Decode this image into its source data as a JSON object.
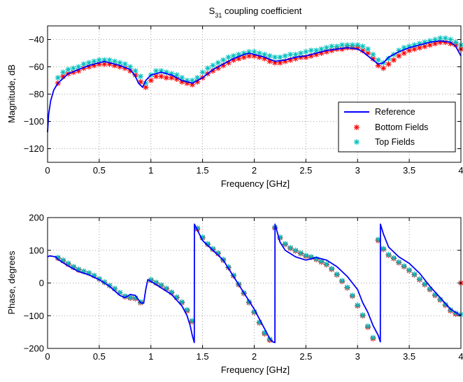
{
  "figure_title": "S",
  "figure_title_sub": "31",
  "figure_title_rest": " coupling coefficient",
  "colors": {
    "reference": "#0000ff",
    "bottom": "#ff0000",
    "top": "#00bfbf"
  },
  "legend": {
    "position": "bottom-right of top plot",
    "items": [
      "Reference",
      "Bottom Fields",
      "Top Fields"
    ]
  },
  "chart_data": [
    {
      "type": "line",
      "xlabel": "Frequency [GHz]",
      "ylabel": "Magnitude, dB",
      "xlim": [
        0,
        4
      ],
      "ylim": [
        -130,
        -30
      ],
      "xticks": [
        "0",
        "0.5",
        "1",
        "1.5",
        "2",
        "2.5",
        "3",
        "3.5",
        "4"
      ],
      "xtick_values": [
        0,
        0.5,
        1,
        1.5,
        2,
        2.5,
        3,
        3.5,
        4
      ],
      "yticks": [
        "−40",
        "−60",
        "−80",
        "−100",
        "−120"
      ],
      "ytick_values": [
        -40,
        -60,
        -80,
        -100,
        -120
      ],
      "grid": true,
      "series": [
        {
          "name": "Reference",
          "style": "line",
          "x": [
            0,
            0.01,
            0.03,
            0.06,
            0.1,
            0.2,
            0.3,
            0.4,
            0.5,
            0.55,
            0.6,
            0.7,
            0.8,
            0.85,
            0.88,
            0.92,
            0.95,
            1.0,
            1.1,
            1.2,
            1.3,
            1.4,
            1.5,
            1.6,
            1.7,
            1.8,
            1.9,
            1.95,
            2.0,
            2.1,
            2.2,
            2.3,
            2.4,
            2.5,
            2.6,
            2.7,
            2.8,
            2.9,
            3.0,
            3.05,
            3.1,
            3.15,
            3.2,
            3.25,
            3.3,
            3.4,
            3.5,
            3.6,
            3.7,
            3.8,
            3.9,
            3.95,
            4.0
          ],
          "y": [
            -108,
            -95,
            -85,
            -77,
            -72,
            -65,
            -62,
            -59,
            -57,
            -56,
            -57,
            -59,
            -62,
            -67,
            -72,
            -75,
            -70,
            -66,
            -64,
            -66,
            -70,
            -72,
            -68,
            -62,
            -58,
            -54,
            -51,
            -50,
            -51,
            -53,
            -56,
            -55,
            -53,
            -52,
            -50,
            -48,
            -47,
            -46,
            -47,
            -49,
            -52,
            -55,
            -58,
            -57,
            -53,
            -49,
            -46,
            -44,
            -42,
            -41,
            -42,
            -45,
            -52
          ]
        },
        {
          "name": "Bottom Fields",
          "style": "marker",
          "x": [
            0.1,
            0.15,
            0.2,
            0.25,
            0.3,
            0.35,
            0.4,
            0.45,
            0.5,
            0.55,
            0.6,
            0.65,
            0.7,
            0.75,
            0.8,
            0.85,
            0.9,
            0.95,
            1.0,
            1.05,
            1.1,
            1.15,
            1.2,
            1.25,
            1.3,
            1.35,
            1.4,
            1.45,
            1.5,
            1.55,
            1.6,
            1.65,
            1.7,
            1.75,
            1.8,
            1.85,
            1.9,
            1.95,
            2.0,
            2.05,
            2.1,
            2.15,
            2.2,
            2.25,
            2.3,
            2.35,
            2.4,
            2.45,
            2.5,
            2.55,
            2.6,
            2.65,
            2.7,
            2.75,
            2.8,
            2.85,
            2.9,
            2.95,
            3.0,
            3.05,
            3.1,
            3.15,
            3.2,
            3.25,
            3.3,
            3.35,
            3.4,
            3.45,
            3.5,
            3.55,
            3.6,
            3.65,
            3.7,
            3.75,
            3.8,
            3.85,
            3.9,
            3.95,
            4.0
          ],
          "y": [
            -72,
            -67,
            -65,
            -64,
            -63,
            -61,
            -60,
            -59,
            -58,
            -58,
            -58,
            -59,
            -60,
            -61,
            -63,
            -66,
            -71,
            -75,
            -70,
            -67,
            -67,
            -68,
            -68,
            -69,
            -71,
            -72,
            -73,
            -71,
            -68,
            -65,
            -63,
            -61,
            -59,
            -57,
            -55,
            -54,
            -53,
            -52,
            -52,
            -53,
            -54,
            -56,
            -57,
            -57,
            -56,
            -55,
            -54,
            -53,
            -53,
            -52,
            -51,
            -50,
            -49,
            -48,
            -47,
            -47,
            -46,
            -46,
            -46,
            -48,
            -50,
            -54,
            -59,
            -61,
            -58,
            -55,
            -52,
            -50,
            -48,
            -47,
            -46,
            -45,
            -44,
            -43,
            -42,
            -42,
            -43,
            -44,
            -47
          ]
        },
        {
          "name": "Top Fields",
          "style": "marker",
          "x": [
            0.1,
            0.15,
            0.2,
            0.25,
            0.3,
            0.35,
            0.4,
            0.45,
            0.5,
            0.55,
            0.6,
            0.65,
            0.7,
            0.75,
            0.8,
            0.85,
            0.9,
            0.95,
            1.0,
            1.05,
            1.1,
            1.15,
            1.2,
            1.25,
            1.3,
            1.35,
            1.4,
            1.45,
            1.5,
            1.55,
            1.6,
            1.65,
            1.7,
            1.75,
            1.8,
            1.85,
            1.9,
            1.95,
            2.0,
            2.05,
            2.1,
            2.15,
            2.2,
            2.25,
            2.3,
            2.35,
            2.4,
            2.45,
            2.5,
            2.55,
            2.6,
            2.65,
            2.7,
            2.75,
            2.8,
            2.85,
            2.9,
            2.95,
            3.0,
            3.05,
            3.1,
            3.15,
            3.2,
            3.25,
            3.3,
            3.35,
            3.4,
            3.45,
            3.5,
            3.55,
            3.6,
            3.65,
            3.7,
            3.75,
            3.8,
            3.85,
            3.9,
            3.95,
            4.0
          ],
          "y": [
            -68,
            -64,
            -62,
            -61,
            -60,
            -58,
            -57,
            -56,
            -55,
            -55,
            -55,
            -56,
            -57,
            -58,
            -60,
            -63,
            -67,
            -72,
            -66,
            -63,
            -63,
            -64,
            -65,
            -66,
            -68,
            -70,
            -70,
            -68,
            -64,
            -61,
            -59,
            -57,
            -55,
            -53,
            -52,
            -51,
            -50,
            -49,
            -49,
            -50,
            -51,
            -52,
            -53,
            -53,
            -52,
            -51,
            -51,
            -50,
            -49,
            -48,
            -48,
            -47,
            -46,
            -45,
            -45,
            -44,
            -44,
            -44,
            -44,
            -45,
            -47,
            -51,
            -55,
            -57,
            -54,
            -51,
            -48,
            -46,
            -45,
            -44,
            -43,
            -42,
            -41,
            -40,
            -39,
            -39,
            -40,
            -42,
            -44
          ]
        }
      ]
    },
    {
      "type": "line",
      "xlabel": "Frequency [GHz]",
      "ylabel": "Phase, degrees",
      "xlim": [
        0,
        4
      ],
      "ylim": [
        -200,
        200
      ],
      "xticks": [
        "0",
        "0.5",
        "1",
        "1.5",
        "2",
        "2.5",
        "3",
        "3.5",
        "4"
      ],
      "xtick_values": [
        0,
        0.5,
        1,
        1.5,
        2,
        2.5,
        3,
        3.5,
        4
      ],
      "yticks": [
        "200",
        "100",
        "0",
        "−100",
        "−200"
      ],
      "ytick_values": [
        200,
        100,
        0,
        -100,
        -200
      ],
      "grid": true,
      "series": [
        {
          "name": "Reference",
          "style": "line",
          "x": [
            0,
            0.02,
            0.08,
            0.1,
            0.2,
            0.3,
            0.4,
            0.5,
            0.6,
            0.7,
            0.75,
            0.8,
            0.85,
            0.9,
            0.93,
            0.95,
            0.97,
            1.0,
            1.05,
            1.1,
            1.2,
            1.3,
            1.35,
            1.38,
            1.4,
            1.42,
            1.421,
            1.5,
            1.6,
            1.7,
            1.8,
            1.9,
            2.0,
            2.1,
            2.15,
            2.18,
            2.2,
            2.201,
            2.25,
            2.3,
            2.4,
            2.5,
            2.6,
            2.7,
            2.8,
            2.9,
            3.0,
            3.05,
            3.1,
            3.15,
            3.2,
            3.22,
            3.221,
            3.25,
            3.3,
            3.4,
            3.5,
            3.6,
            3.7,
            3.8,
            3.9,
            4.0
          ],
          "y": [
            80,
            83,
            80,
            72,
            52,
            35,
            25,
            10,
            -10,
            -38,
            -45,
            -35,
            -38,
            -60,
            -62,
            -20,
            10,
            5,
            -5,
            -15,
            -35,
            -70,
            -100,
            -130,
            -160,
            -182,
            180,
            130,
            100,
            70,
            20,
            -30,
            -80,
            -140,
            -170,
            -180,
            -182,
            180,
            125,
            100,
            80,
            70,
            78,
            70,
            50,
            20,
            -20,
            -60,
            -90,
            -130,
            -160,
            -180,
            180,
            150,
            110,
            80,
            60,
            30,
            -10,
            -45,
            -80,
            -100
          ]
        },
        {
          "name": "Bottom Fields",
          "style": "marker",
          "x": [
            0.1,
            0.15,
            0.2,
            0.25,
            0.3,
            0.35,
            0.4,
            0.45,
            0.5,
            0.55,
            0.6,
            0.65,
            0.7,
            0.75,
            0.8,
            0.85,
            0.9,
            1.0,
            1.05,
            1.1,
            1.15,
            1.2,
            1.25,
            1.3,
            1.35,
            1.4,
            1.45,
            1.5,
            1.55,
            1.6,
            1.65,
            1.7,
            1.75,
            1.8,
            1.85,
            1.9,
            1.95,
            2.0,
            2.05,
            2.1,
            2.15,
            2.2,
            2.25,
            2.3,
            2.35,
            2.4,
            2.45,
            2.5,
            2.55,
            2.6,
            2.65,
            2.7,
            2.75,
            2.8,
            2.85,
            2.9,
            2.95,
            3.0,
            3.05,
            3.1,
            3.15,
            3.2,
            3.25,
            3.3,
            3.35,
            3.4,
            3.45,
            3.5,
            3.55,
            3.6,
            3.65,
            3.7,
            3.75,
            3.8,
            3.85,
            3.9,
            3.95,
            4.0
          ],
          "y": [
            76,
            68,
            58,
            48,
            40,
            35,
            30,
            22,
            12,
            2,
            -8,
            -18,
            -30,
            -42,
            -46,
            -48,
            -60,
            8,
            0,
            -8,
            -18,
            -30,
            -45,
            -60,
            -85,
            -118,
            165,
            138,
            118,
            103,
            90,
            70,
            47,
            22,
            -5,
            -32,
            -60,
            -90,
            -122,
            -155,
            -175,
            168,
            138,
            118,
            106,
            98,
            90,
            82,
            78,
            72,
            64,
            56,
            42,
            25,
            5,
            -15,
            -40,
            -70,
            -100,
            -135,
            -170,
            130,
            103,
            85,
            75,
            62,
            50,
            38,
            25,
            10,
            -5,
            -20,
            -38,
            -52,
            -68,
            -85,
            -95,
            0
          ]
        },
        {
          "name": "Top Fields",
          "style": "marker",
          "x": [
            0.1,
            0.15,
            0.2,
            0.25,
            0.3,
            0.35,
            0.4,
            0.45,
            0.5,
            0.55,
            0.6,
            0.65,
            0.7,
            0.75,
            0.8,
            0.85,
            0.9,
            1.0,
            1.05,
            1.1,
            1.15,
            1.2,
            1.25,
            1.3,
            1.35,
            1.4,
            1.45,
            1.5,
            1.55,
            1.6,
            1.65,
            1.7,
            1.75,
            1.8,
            1.85,
            1.9,
            1.95,
            2.0,
            2.05,
            2.1,
            2.15,
            2.2,
            2.25,
            2.3,
            2.35,
            2.4,
            2.45,
            2.5,
            2.55,
            2.6,
            2.65,
            2.7,
            2.75,
            2.8,
            2.85,
            2.9,
            2.95,
            3.0,
            3.05,
            3.1,
            3.15,
            3.2,
            3.25,
            3.3,
            3.35,
            3.4,
            3.45,
            3.5,
            3.55,
            3.6,
            3.65,
            3.7,
            3.75,
            3.8,
            3.85,
            3.9,
            3.95,
            4.0
          ],
          "y": [
            78,
            70,
            60,
            50,
            42,
            36,
            31,
            23,
            13,
            3,
            -7,
            -17,
            -29,
            -40,
            -44,
            -46,
            -58,
            10,
            2,
            -6,
            -16,
            -28,
            -43,
            -58,
            -82,
            -115,
            168,
            140,
            120,
            105,
            92,
            72,
            49,
            24,
            -3,
            -30,
            -58,
            -88,
            -120,
            -152,
            -172,
            170,
            140,
            120,
            108,
            100,
            92,
            84,
            80,
            74,
            66,
            58,
            44,
            27,
            7,
            -13,
            -38,
            -68,
            -98,
            -132,
            -167,
            133,
            105,
            87,
            77,
            64,
            52,
            40,
            27,
            12,
            -3,
            -18,
            -36,
            -50,
            -66,
            -82,
            -92,
            -96
          ]
        }
      ]
    }
  ]
}
